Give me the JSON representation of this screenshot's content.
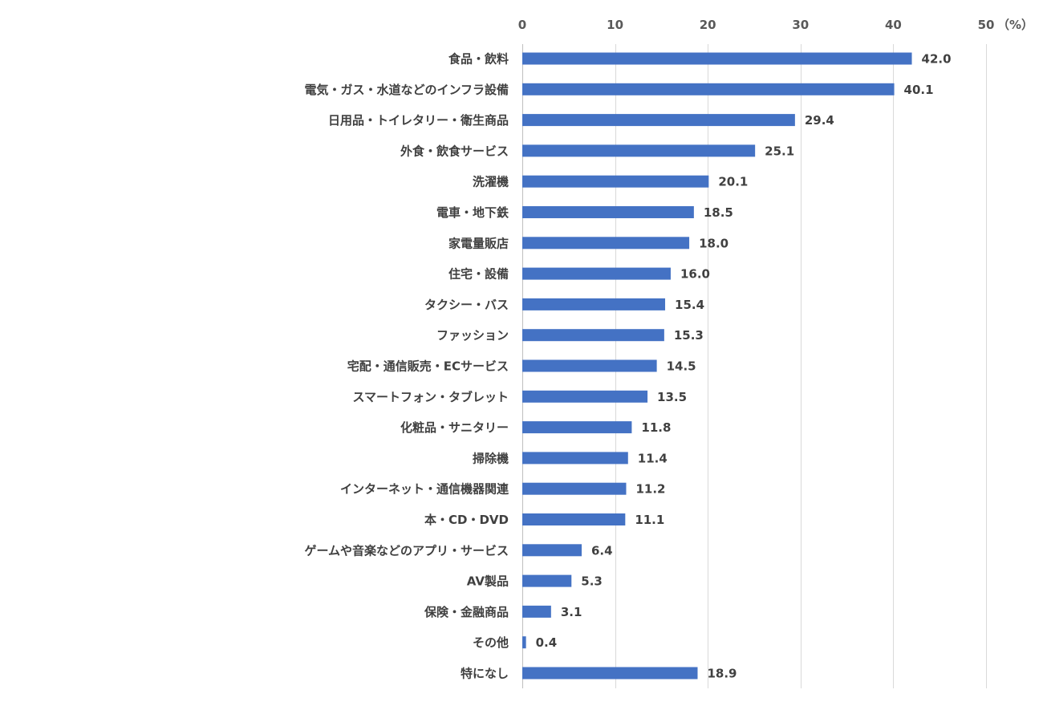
{
  "chart_data": {
    "type": "bar",
    "orientation": "horizontal",
    "unit": "（%）",
    "xlim": [
      0,
      50
    ],
    "xticks": [
      "0",
      "10",
      "20",
      "30",
      "40",
      "50"
    ],
    "grid": true,
    "bar_color": "#4472c4",
    "categories": [
      "食品・飲料",
      "電気・ガス・水道などのインフラ設備",
      "日用品・トイレタリー・衛生商品",
      "外食・飲食サービス",
      "洗濯機",
      "電車・地下鉄",
      "家電量販店",
      "住宅・設備",
      "タクシー・バス",
      "ファッション",
      "宅配・通信販売・ECサービス",
      "スマートフォン・タブレット",
      "化粧品・サニタリー",
      "掃除機",
      "インターネット・通信機器関連",
      "本・CD・DVD",
      "ゲームや音楽などのアプリ・サービス",
      "AV製品",
      "保険・金融商品",
      "その他",
      "特になし"
    ],
    "values": [
      42.0,
      40.1,
      29.4,
      25.1,
      20.1,
      18.5,
      18.0,
      16.0,
      15.4,
      15.3,
      14.5,
      13.5,
      11.8,
      11.4,
      11.2,
      11.1,
      6.4,
      5.3,
      3.1,
      0.4,
      18.9
    ],
    "value_labels": [
      "42.0",
      "40.1",
      "29.4",
      "25.1",
      "20.1",
      "18.5",
      "18.0",
      "16.0",
      "15.4",
      "15.3",
      "14.5",
      "13.5",
      "11.8",
      "11.4",
      "11.2",
      "11.1",
      "6.4",
      "5.3",
      "3.1",
      "0.4",
      "18.9"
    ]
  }
}
